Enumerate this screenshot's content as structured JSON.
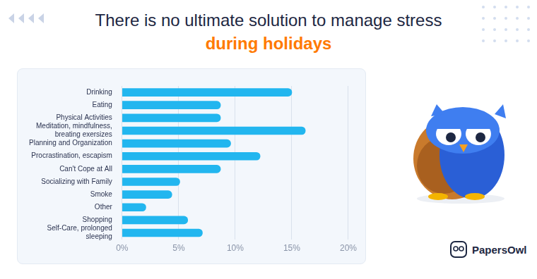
{
  "chart_data": {
    "type": "bar",
    "orientation": "horizontal",
    "title": "There is no ultimate solution to manage stress during holidays",
    "categories": [
      "Drinking",
      "Eating",
      "Physical Activities",
      "Meditation, mindfulness, breating exersizes",
      "Planning and Organization",
      "Procrastination, escapism",
      "Can't Cope at All",
      "Socializing with Family",
      "Smoke",
      "Other",
      "Shopping",
      "Self-Care, prolonged sleeping"
    ],
    "values": [
      15.0,
      8.7,
      8.7,
      16.2,
      9.6,
      12.2,
      8.7,
      5.1,
      4.4,
      2.1,
      5.8,
      7.1
    ],
    "color": "#22b6ef",
    "xlim": [
      0,
      20
    ],
    "xticks": [
      {
        "value": 0,
        "label": "0%"
      },
      {
        "value": 5,
        "label": "5%"
      },
      {
        "value": 10,
        "label": "10%"
      },
      {
        "value": 15,
        "label": "15%"
      },
      {
        "value": 20,
        "label": "20%"
      }
    ],
    "grid": true,
    "annotations": [
      "PapersOwl"
    ]
  }
}
